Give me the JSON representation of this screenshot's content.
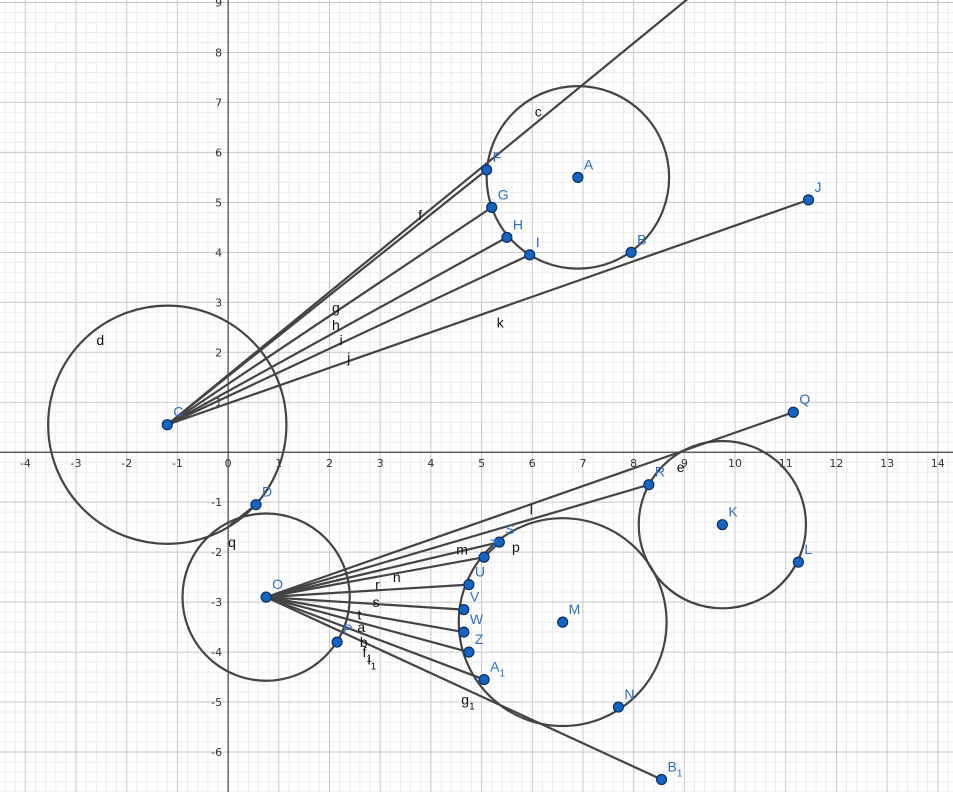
{
  "view": {
    "xmin": -4.5,
    "xmax": 14.3,
    "ymin": -6.8,
    "ymax": 9.05
  },
  "axes": {
    "x_ticks": [
      "-4",
      "-3",
      "-2",
      "-1",
      "0",
      "1",
      "2",
      "3",
      "4",
      "5",
      "6",
      "7",
      "8",
      "9",
      "10",
      "11",
      "12",
      "13",
      "14"
    ],
    "y_ticks": [
      "-6",
      "-5",
      "-4",
      "-3",
      "-2",
      "-1",
      "1",
      "2",
      "3",
      "4",
      "5",
      "6",
      "7",
      "8",
      "9"
    ]
  },
  "colors": {
    "point": "#1565c0",
    "point_stroke": "#0d2f66",
    "curve": "#444444",
    "label_point": "#2e6fc4",
    "grid_major": "#c8c8c8",
    "grid_minor": "#ececec"
  },
  "points": [
    {
      "name": "A",
      "x": 6.9,
      "y": 5.5,
      "dx": 6,
      "dy": -8
    },
    {
      "name": "B",
      "x": 7.95,
      "y": 4.0,
      "dx": 6,
      "dy": -8
    },
    {
      "name": "C",
      "x": -1.2,
      "y": 0.55,
      "dx": 6,
      "dy": -8
    },
    {
      "name": "D",
      "x": 0.55,
      "y": -1.05,
      "dx": 6,
      "dy": -8
    },
    {
      "name": "F",
      "x": 5.1,
      "y": 5.65,
      "dx": 6,
      "dy": -8
    },
    {
      "name": "G",
      "x": 5.2,
      "y": 4.9,
      "dx": 6,
      "dy": -8
    },
    {
      "name": "H",
      "x": 5.5,
      "y": 4.3,
      "dx": 6,
      "dy": -8
    },
    {
      "name": "I",
      "x": 5.95,
      "y": 3.95,
      "dx": 6,
      "dy": -8
    },
    {
      "name": "J",
      "x": 11.45,
      "y": 5.05,
      "dx": 6,
      "dy": -8
    },
    {
      "name": "K",
      "x": 9.75,
      "y": -1.45,
      "dx": 6,
      "dy": -8
    },
    {
      "name": "L",
      "x": 11.25,
      "y": -2.2,
      "dx": 6,
      "dy": -8
    },
    {
      "name": "M",
      "x": 6.6,
      "y": -3.4,
      "dx": 6,
      "dy": -8
    },
    {
      "name": "N",
      "x": 7.7,
      "y": -5.1,
      "dx": 6,
      "dy": -8
    },
    {
      "name": "O",
      "x": 0.75,
      "y": -2.9,
      "dx": 6,
      "dy": -8
    },
    {
      "name": "P",
      "x": 2.15,
      "y": -3.8,
      "dx": 6,
      "dy": -8
    },
    {
      "name": "Q",
      "x": 11.15,
      "y": 0.8,
      "dx": 6,
      "dy": -8
    },
    {
      "name": "R",
      "x": 8.3,
      "y": -0.65,
      "dx": 6,
      "dy": -8
    },
    {
      "name": "S",
      "x": 5.35,
      "y": -1.8,
      "dx": 6,
      "dy": -8
    },
    {
      "name": "T",
      "x": 5.05,
      "y": -2.1,
      "dx": 6,
      "dy": -8
    },
    {
      "name": "U",
      "x": 4.75,
      "y": -2.65,
      "dx": 6,
      "dy": -8
    },
    {
      "name": "V",
      "x": 4.65,
      "y": -3.15,
      "dx": 6,
      "dy": -8
    },
    {
      "name": "W",
      "x": 4.65,
      "y": -3.6,
      "dx": 6,
      "dy": -8
    },
    {
      "name": "Z",
      "x": 4.75,
      "y": -4.0,
      "dx": 6,
      "dy": -8
    },
    {
      "name": "A",
      "sub": "1",
      "x": 5.05,
      "y": -4.55,
      "dx": 6,
      "dy": -8
    },
    {
      "name": "B",
      "sub": "1",
      "x": 8.55,
      "y": -6.55,
      "dx": 6,
      "dy": -8
    }
  ],
  "circles": [
    {
      "name": "c",
      "cx": 6.9,
      "cy": 5.5,
      "r": 1.8
    },
    {
      "name": "d",
      "cx": -1.2,
      "cy": 0.55,
      "r": 2.35
    },
    {
      "name": "e",
      "cx": 9.75,
      "cy": -1.45,
      "r": 1.65
    },
    {
      "name": "M-circle",
      "cx": 6.6,
      "cy": -3.4,
      "r": 2.05
    },
    {
      "name": "q",
      "cx": 0.75,
      "cy": -2.9,
      "r": 1.65
    }
  ],
  "segments": [
    {
      "from": [
        -1.2,
        0.55
      ],
      "to": [
        9.1,
        9.1
      ]
    },
    {
      "from": [
        -1.2,
        0.55
      ],
      "to": [
        5.1,
        5.65
      ]
    },
    {
      "from": [
        -1.2,
        0.55
      ],
      "to": [
        5.2,
        4.9
      ]
    },
    {
      "from": [
        -1.2,
        0.55
      ],
      "to": [
        5.5,
        4.3
      ]
    },
    {
      "from": [
        -1.2,
        0.55
      ],
      "to": [
        5.95,
        3.95
      ]
    },
    {
      "from": [
        -1.2,
        0.55
      ],
      "to": [
        11.45,
        5.05
      ]
    },
    {
      "from": [
        -1.2,
        0.55
      ],
      "to": [
        -1.0,
        0.7
      ]
    },
    {
      "from": [
        0.55,
        -1.05
      ],
      "to": [
        0.05,
        -1.45
      ]
    },
    {
      "from": [
        0.75,
        -2.9
      ],
      "to": [
        11.15,
        0.8
      ]
    },
    {
      "from": [
        0.75,
        -2.9
      ],
      "to": [
        8.3,
        -0.65
      ]
    },
    {
      "from": [
        0.75,
        -2.9
      ],
      "to": [
        5.35,
        -1.8
      ]
    },
    {
      "from": [
        0.75,
        -2.9
      ],
      "to": [
        5.05,
        -2.1
      ]
    },
    {
      "from": [
        0.75,
        -2.9
      ],
      "to": [
        4.75,
        -2.65
      ]
    },
    {
      "from": [
        0.75,
        -2.9
      ],
      "to": [
        4.65,
        -3.15
      ]
    },
    {
      "from": [
        0.75,
        -2.9
      ],
      "to": [
        4.65,
        -3.6
      ]
    },
    {
      "from": [
        0.75,
        -2.9
      ],
      "to": [
        4.75,
        -4.0
      ]
    },
    {
      "from": [
        0.75,
        -2.9
      ],
      "to": [
        5.05,
        -4.55
      ]
    },
    {
      "from": [
        0.75,
        -2.9
      ],
      "to": [
        8.55,
        -6.55
      ]
    },
    {
      "from": [
        5.05,
        -2.1
      ],
      "to": [
        5.35,
        -1.8
      ]
    }
  ],
  "object_labels": [
    {
      "text": "c",
      "x": 6.05,
      "y": 6.72
    },
    {
      "text": "d",
      "x": -2.6,
      "y": 2.15
    },
    {
      "text": "e",
      "x": 8.85,
      "y": -0.4
    },
    {
      "text": "f",
      "x": 3.75,
      "y": 4.65
    },
    {
      "text": "g",
      "x": 2.05,
      "y": 2.8
    },
    {
      "text": "h",
      "x": 2.05,
      "y": 2.45
    },
    {
      "text": "i",
      "x": 2.2,
      "y": 2.15
    },
    {
      "text": "j",
      "x": 2.35,
      "y": 1.8
    },
    {
      "text": "k",
      "x": 5.3,
      "y": 2.5
    },
    {
      "text": "l",
      "x": 5.95,
      "y": -1.25
    },
    {
      "text": "m",
      "x": 4.5,
      "y": -2.05
    },
    {
      "text": "n",
      "x": 3.25,
      "y": -2.6
    },
    {
      "text": "p",
      "x": 5.6,
      "y": -2.0
    },
    {
      "text": "q",
      "x": 0.0,
      "y": -1.9
    },
    {
      "text": "r",
      "x": 2.9,
      "y": -2.75
    },
    {
      "text": "s",
      "x": 2.85,
      "y": -3.1
    },
    {
      "text": "t",
      "x": 2.55,
      "y": -3.35
    },
    {
      "text": "a",
      "x": 2.55,
      "y": -3.6
    },
    {
      "text": "b",
      "x": 2.6,
      "y": -3.9
    },
    {
      "text": "f",
      "sub": "1",
      "x": 2.65,
      "y": -4.1
    },
    {
      "text": "i",
      "sub": "1",
      "x": 2.75,
      "y": -4.25
    },
    {
      "text": "g",
      "sub": "1",
      "x": 4.6,
      "y": -5.05
    }
  ]
}
